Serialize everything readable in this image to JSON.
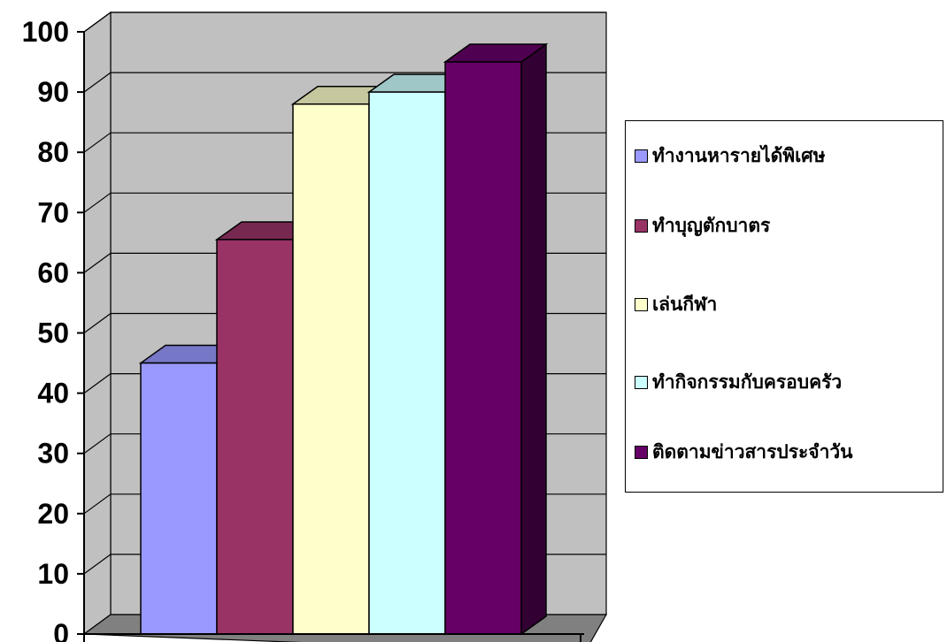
{
  "chart_data": {
    "type": "bar",
    "title": "",
    "xlabel": "",
    "ylabel": "",
    "ylim": [
      0,
      100
    ],
    "yticks": [
      0,
      10,
      20,
      30,
      40,
      50,
      60,
      70,
      80,
      90,
      100
    ],
    "grid": true,
    "legend_position": "right",
    "categories": [
      "ทำงานหารายได้พิเศษ",
      "ทำบุญตักบาตร",
      "เล่นกีฬา",
      "ทำกิจกรรมกับครอบครัว",
      "ติดตามข่าวสารประจำวัน"
    ],
    "values": [
      45,
      65.5,
      88,
      90,
      95
    ],
    "colors": [
      "#9999ff",
      "#993366",
      "#ffffcc",
      "#ccffff",
      "#660066"
    ]
  }
}
